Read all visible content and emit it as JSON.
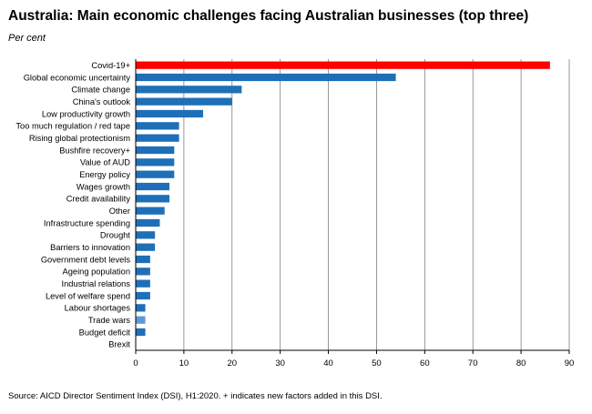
{
  "chart_data": {
    "type": "bar",
    "orientation": "horizontal",
    "title": "Australia: Main economic challenges facing Australian businesses (top three)",
    "subtitle": "Per cent",
    "xlim": [
      0,
      90
    ],
    "x_ticks": [
      0,
      10,
      20,
      30,
      40,
      50,
      60,
      70,
      80,
      90
    ],
    "grid": "vertical",
    "categories": [
      "Covid-19+",
      "Global economic uncertainty",
      "Climate change",
      "China's outlook",
      "Low productivity growth",
      "Too much regulation / red tape",
      "Rising global protectionism",
      "Bushfire recovery+",
      "Value of AUD",
      "Energy policy",
      "Wages growth",
      "Credit availability",
      "Other",
      "Infrastructure spending",
      "Drought",
      "Barriers to innovation",
      "Government debt levels",
      "Ageing population",
      "Industrial relations",
      "Level of welfare spend",
      "Labour shortages",
      "Trade wars",
      "Budget deficit",
      "Brexit"
    ],
    "values": [
      86,
      54,
      22,
      20,
      14,
      9,
      9,
      8,
      8,
      8,
      7,
      7,
      6,
      5,
      4,
      4,
      3,
      3,
      3,
      3,
      2,
      2,
      2,
      0
    ],
    "bar_colors": [
      "#ff0000",
      "#1f6fb8",
      "#1f6fb8",
      "#1f6fb8",
      "#1f6fb8",
      "#1f6fb8",
      "#1f6fb8",
      "#1f6fb8",
      "#1f6fb8",
      "#1f6fb8",
      "#1f6fb8",
      "#1f6fb8",
      "#1f6fb8",
      "#1f6fb8",
      "#1f6fb8",
      "#1f6fb8",
      "#1f6fb8",
      "#1f6fb8",
      "#1f6fb8",
      "#1f6fb8",
      "#1f6fb8",
      "#5b9bd5",
      "#1f6fb8",
      "#1f6fb8"
    ]
  },
  "source": "Source: AICD Director Sentiment Index (DSI), H1:2020. + indicates new factors added in this DSI."
}
